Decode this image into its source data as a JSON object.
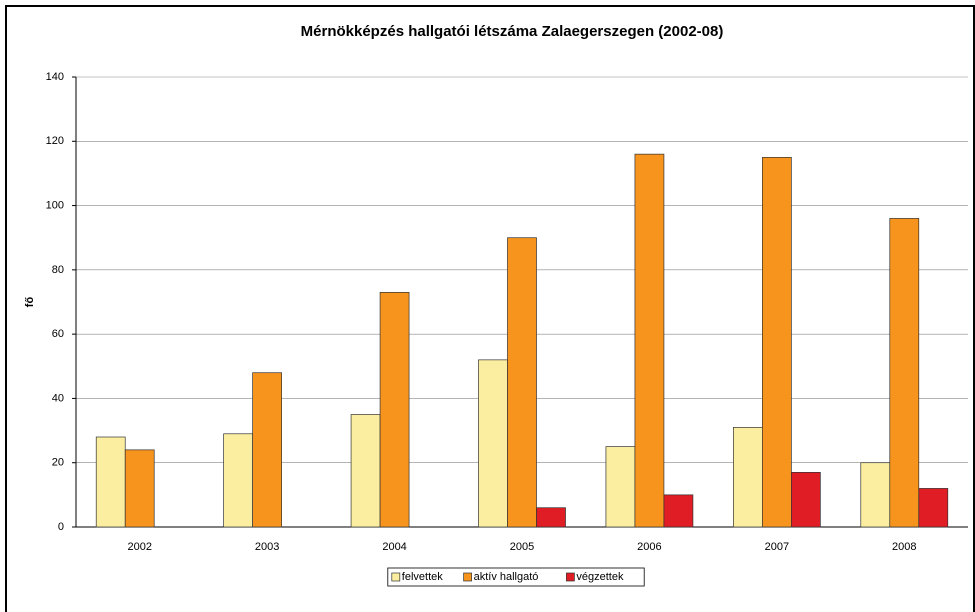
{
  "chart_data": {
    "type": "bar",
    "title": "Mérnökképzés hallgatói létszáma Zalaegerszegen (2002-08)",
    "y_label": "fő",
    "categories": [
      "2002",
      "2003",
      "2004",
      "2005",
      "2006",
      "2007",
      "2008"
    ],
    "series": [
      {
        "name": "felvettek",
        "color": "#fbeea0",
        "values": [
          28,
          29,
          35,
          52,
          25,
          31,
          20
        ]
      },
      {
        "name": "aktív hallgató",
        "color": "#f7941d",
        "values": [
          24,
          48,
          73,
          90,
          116,
          115,
          96
        ]
      },
      {
        "name": "végzettek",
        "color": "#e01c24",
        "values": [
          null,
          null,
          null,
          6,
          10,
          17,
          12
        ]
      }
    ],
    "ylim": [
      0,
      140
    ],
    "yticks": [
      0,
      20,
      40,
      60,
      80,
      100,
      120,
      140
    ],
    "grid": true,
    "legend": "bottom"
  }
}
